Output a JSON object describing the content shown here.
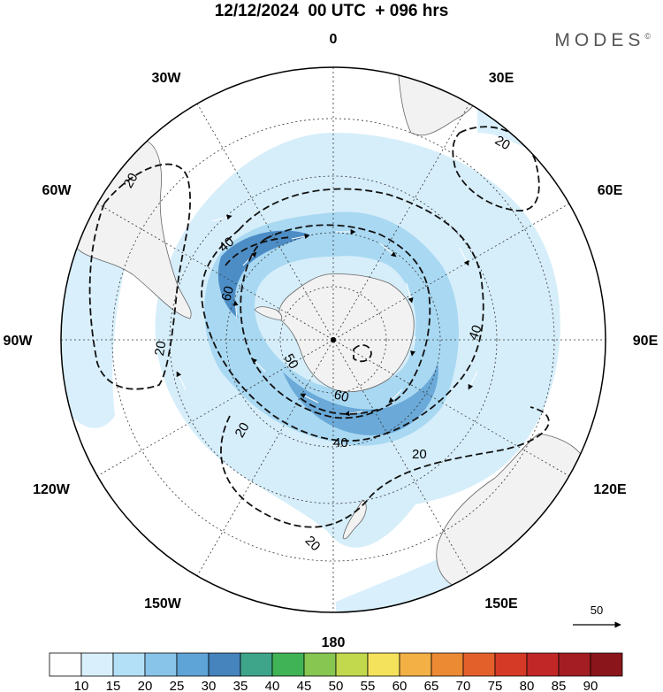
{
  "title": "12/12/2024  00 UTC  + 096 hrs",
  "brand": "MODES",
  "brand_mark": "©",
  "map": {
    "projection": "south-polar-stereographic",
    "longitude_labels": {
      "top": "0",
      "top_right": "30E",
      "right_upper": "60E",
      "right": "90E",
      "right_lower": "120E",
      "bottom_right": "150E",
      "bottom": "180",
      "bottom_left": "150W",
      "left_lower": "120W",
      "left": "90W",
      "left_upper": "60W",
      "top_left": "30W"
    },
    "contour_labels": [
      {
        "id": "c20-sa",
        "text": "20"
      },
      {
        "id": "c20-af",
        "text": "20"
      },
      {
        "id": "c20-w",
        "text": "20"
      },
      {
        "id": "c20-sw",
        "text": "20"
      },
      {
        "id": "c20-s",
        "text": "20"
      },
      {
        "id": "c20-se",
        "text": "20"
      },
      {
        "id": "c40-n",
        "text": "40"
      },
      {
        "id": "c40-e",
        "text": "40"
      },
      {
        "id": "c40-s",
        "text": "40"
      },
      {
        "id": "c60-w",
        "text": "60"
      },
      {
        "id": "c50-w",
        "text": "50"
      },
      {
        "id": "c60-s",
        "text": "60"
      }
    ],
    "reference_vector": "50",
    "colors": {
      "land": "#f2f2f2",
      "jet_light": "#d2ecfa",
      "jet_mid": "#a9d8f2",
      "jet_strong": "#7cb9e0",
      "jet_core": "#4d8dc6"
    }
  },
  "colorbar": {
    "ticks": [
      "10",
      "15",
      "20",
      "25",
      "30",
      "35",
      "40",
      "45",
      "50",
      "55",
      "60",
      "65",
      "70",
      "75",
      "80",
      "85",
      "90"
    ],
    "colors": [
      "#ffffff",
      "#d9f0fc",
      "#b4e0f7",
      "#88c4ea",
      "#5ea4d7",
      "#4584bd",
      "#3fa58a",
      "#3fb356",
      "#86c651",
      "#c2d94e",
      "#f5e25c",
      "#f2b045",
      "#ec8a33",
      "#e4602a",
      "#d53a27",
      "#c12727",
      "#a31d22",
      "#8a161b"
    ]
  }
}
